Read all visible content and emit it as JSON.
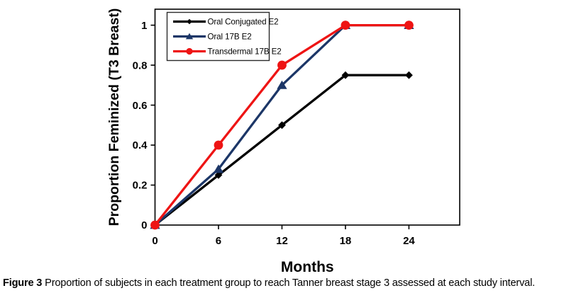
{
  "figure": {
    "caption_prefix": "Figure 3",
    "caption_text": "Proportion of subjects in each treatment group to reach Tanner breast stage 3 assessed at each study interval."
  },
  "chart_data": {
    "type": "line",
    "title": "",
    "xlabel": "Months",
    "ylabel": "Proportion Feminized (T3 Breast)",
    "x": [
      0,
      6,
      12,
      18,
      24
    ],
    "x_ticks": [
      "0",
      "6",
      "12",
      "18",
      "24"
    ],
    "y_ticks": [
      "0",
      "0.2",
      "0.4",
      "0.6",
      "0.8",
      "1"
    ],
    "y_tick_values": [
      0,
      0.2,
      0.4,
      0.6,
      0.8,
      1
    ],
    "xlim": [
      0,
      28.8
    ],
    "ylim": [
      0,
      1.08
    ],
    "grid": false,
    "legend_position": "top-left-inside",
    "series": [
      {
        "name": "Oral Conjugated E2",
        "color": "#000000",
        "marker": "diamond",
        "values": [
          0,
          0.25,
          0.5,
          0.75,
          0.75
        ]
      },
      {
        "name": "Oral 17B E2",
        "color": "#1c3667",
        "marker": "triangle",
        "values": [
          0,
          0.28,
          0.7,
          1.0,
          1.0
        ]
      },
      {
        "name": "Transdermal 17B E2",
        "color": "#ee1414",
        "marker": "circle",
        "values": [
          0,
          0.4,
          0.8,
          1.0,
          1.0
        ]
      }
    ],
    "colors": {
      "axis": "#000000",
      "legend_border": "#2b2b2b",
      "background": "#ffffff"
    }
  }
}
